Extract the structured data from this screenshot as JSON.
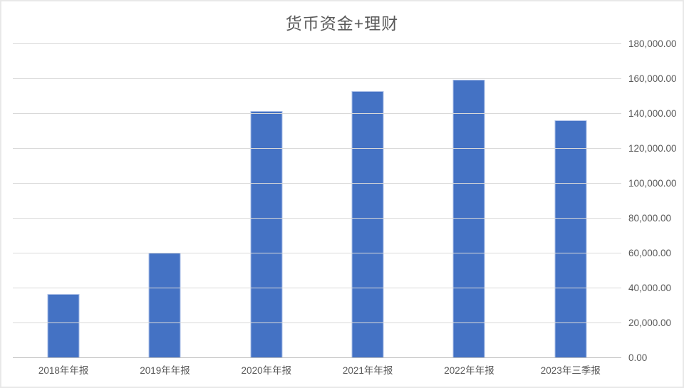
{
  "title": "货币资金+理财",
  "colors": {
    "bar": "#4472C4",
    "bar_edge": "#AEC1E8",
    "gridline": "#D9D9D9",
    "axis_line": "#BFBFBF",
    "text": "#595959",
    "border": "#E8E8E8",
    "background": "#FFFFFF"
  },
  "chart_data": {
    "type": "bar",
    "title": "货币资金+理财",
    "categories": [
      "2018年年报",
      "2019年年报",
      "2020年年报",
      "2021年年报",
      "2022年年报",
      "2023年三季报"
    ],
    "values": [
      36700,
      60300,
      141600,
      153000,
      159600,
      136300
    ],
    "xlabel": "",
    "ylabel": "",
    "ylim": [
      0,
      180000
    ],
    "ytick_step": 20000,
    "ytick_labels": [
      "0.00",
      "20,000.00",
      "40,000.00",
      "60,000.00",
      "80,000.00",
      "100,000.00",
      "120,000.00",
      "140,000.00",
      "160,000.00",
      "180,000.00"
    ],
    "value_axis_side": "right",
    "grid": true,
    "legend": false
  }
}
